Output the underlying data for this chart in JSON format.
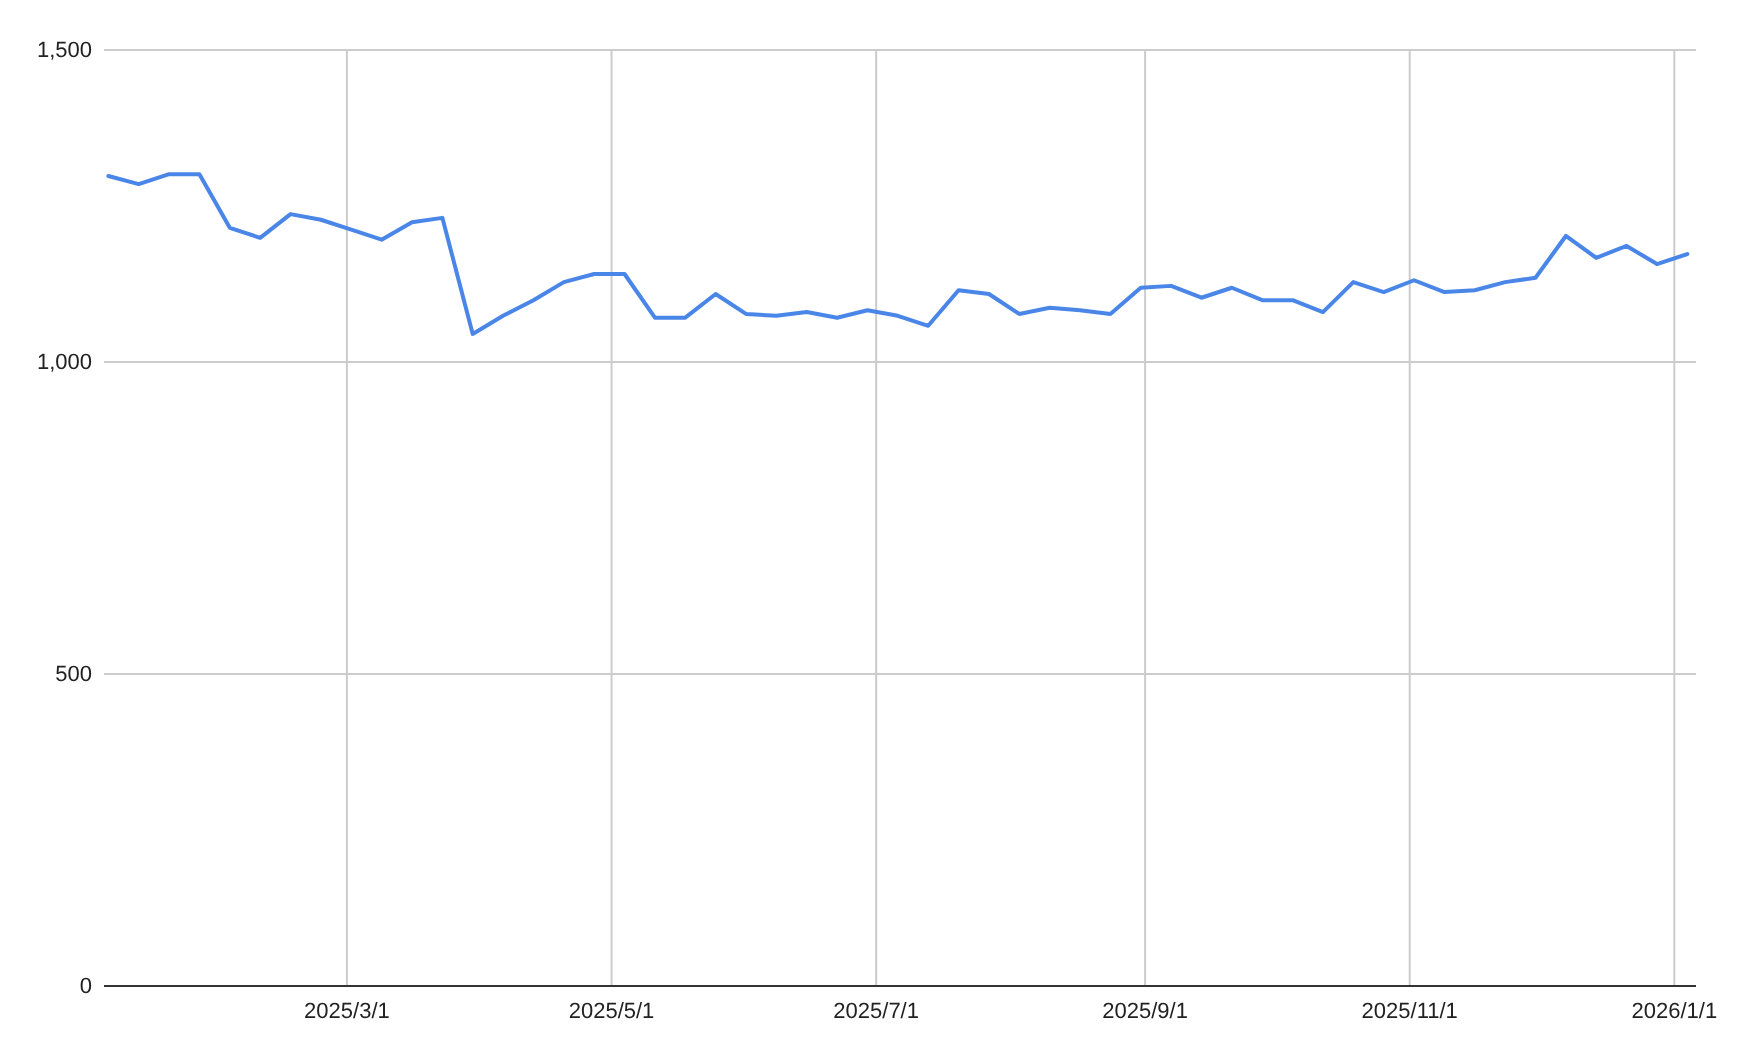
{
  "chart_data": {
    "type": "line",
    "x": [
      "2025-01-05",
      "2025-01-12",
      "2025-01-19",
      "2025-01-26",
      "2025-02-02",
      "2025-02-09",
      "2025-02-16",
      "2025-02-23",
      "2025-03-02",
      "2025-03-09",
      "2025-03-16",
      "2025-03-23",
      "2025-03-30",
      "2025-04-06",
      "2025-04-13",
      "2025-04-20",
      "2025-04-27",
      "2025-05-04",
      "2025-05-11",
      "2025-05-18",
      "2025-05-25",
      "2025-06-01",
      "2025-06-08",
      "2025-06-15",
      "2025-06-22",
      "2025-06-29",
      "2025-07-06",
      "2025-07-13",
      "2025-07-20",
      "2025-07-27",
      "2025-08-03",
      "2025-08-10",
      "2025-08-17",
      "2025-08-24",
      "2025-08-31",
      "2025-09-07",
      "2025-09-14",
      "2025-09-21",
      "2025-09-28",
      "2025-10-05",
      "2025-10-12",
      "2025-10-19",
      "2025-10-26",
      "2025-11-02",
      "2025-11-09",
      "2025-11-16",
      "2025-11-23",
      "2025-11-30",
      "2025-12-07",
      "2025-12-14",
      "2025-12-21",
      "2025-12-28",
      "2026-01-04"
    ],
    "series": [
      {
        "color": "#4a86e8",
        "values": [
          1298,
          1285,
          1301,
          1301,
          1215,
          1199,
          1237,
          1228,
          1212,
          1196,
          1224,
          1231,
          1045,
          1074,
          1099,
          1128,
          1141,
          1141,
          1071,
          1071,
          1109,
          1077,
          1074,
          1080,
          1071,
          1083,
          1074,
          1058,
          1115,
          1109,
          1077,
          1087,
          1083,
          1077,
          1119,
          1122,
          1103,
          1119,
          1099,
          1099,
          1080,
          1128,
          1112,
          1131,
          1112,
          1115,
          1128,
          1135,
          1202,
          1167,
          1186,
          1157,
          1173
        ]
      }
    ],
    "xlim": [
      "2025-01-04",
      "2026-01-06"
    ],
    "xticks": [
      {
        "value": "2025-03-01",
        "label": "2025/3/1"
      },
      {
        "value": "2025-05-01",
        "label": "2025/5/1"
      },
      {
        "value": "2025-07-01",
        "label": "2025/7/1"
      },
      {
        "value": "2025-09-01",
        "label": "2025/9/1"
      },
      {
        "value": "2025-11-01",
        "label": "2025/11/1"
      },
      {
        "value": "2026-01-01",
        "label": "2026/1/1"
      }
    ],
    "ylim": [
      0,
      1500
    ],
    "yticks": [
      0,
      500,
      {
        "value": 1000,
        "label": "1,000"
      },
      {
        "value": 1500,
        "label": "1,500"
      }
    ],
    "grid": true,
    "marker": "none",
    "line_style": "solid"
  }
}
